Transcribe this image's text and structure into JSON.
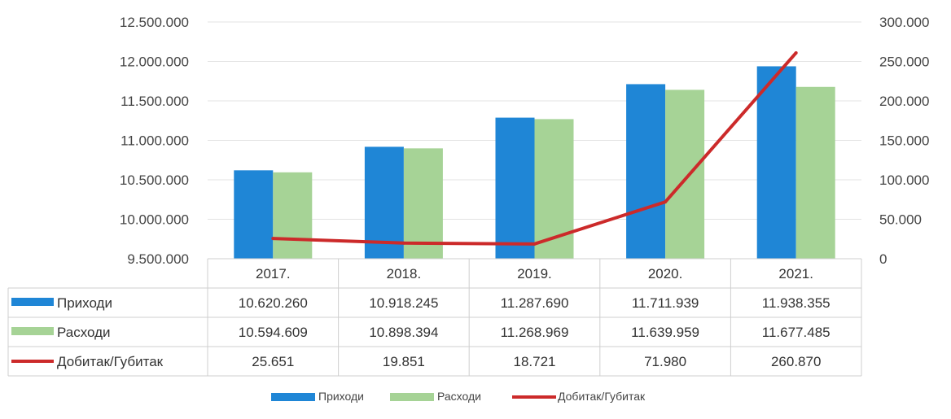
{
  "chart_data": {
    "type": "bar",
    "categories": [
      "2017.",
      "2018.",
      "2019.",
      "2020.",
      "2021."
    ],
    "series": [
      {
        "name": "Приходи",
        "kind": "bar",
        "axis": "left",
        "color": "#1f86d6",
        "values": [
          10620260,
          10918245,
          11287690,
          11711939,
          11938355
        ],
        "labels": [
          "10.620.260",
          "10.918.245",
          "11.287.690",
          "11.711.939",
          "11.938.355"
        ]
      },
      {
        "name": "Расходи",
        "kind": "bar",
        "axis": "left",
        "color": "#a6d396",
        "values": [
          10594609,
          10898394,
          11268969,
          11639959,
          11677485
        ],
        "labels": [
          "10.594.609",
          "10.898.394",
          "11.268.969",
          "11.639.959",
          "11.677.485"
        ]
      },
      {
        "name": "Добитак/Губитак",
        "kind": "line",
        "axis": "right",
        "color": "#cc2a2a",
        "values": [
          25651,
          19851,
          18721,
          71980,
          260870
        ],
        "labels": [
          "25.651",
          "19.851",
          "18.721",
          "71.980",
          "260.870"
        ]
      }
    ],
    "left_axis": {
      "ylim": [
        9500000,
        12500000
      ],
      "ticks": [
        9500000,
        10000000,
        10500000,
        11000000,
        11500000,
        12000000,
        12500000
      ],
      "tick_labels": [
        "9.500.000",
        "10.000.000",
        "10.500.000",
        "11.000.000",
        "11.500.000",
        "12.000.000",
        "12.500.000"
      ]
    },
    "right_axis": {
      "ylim": [
        0,
        300000
      ],
      "ticks": [
        0,
        50000,
        100000,
        150000,
        200000,
        250000,
        300000
      ],
      "tick_labels": [
        "0",
        "50.000",
        "100.000",
        "150.000",
        "200.000",
        "250.000",
        "300.000"
      ]
    },
    "grid": true,
    "data_table": true,
    "legend_position": "bottom"
  }
}
